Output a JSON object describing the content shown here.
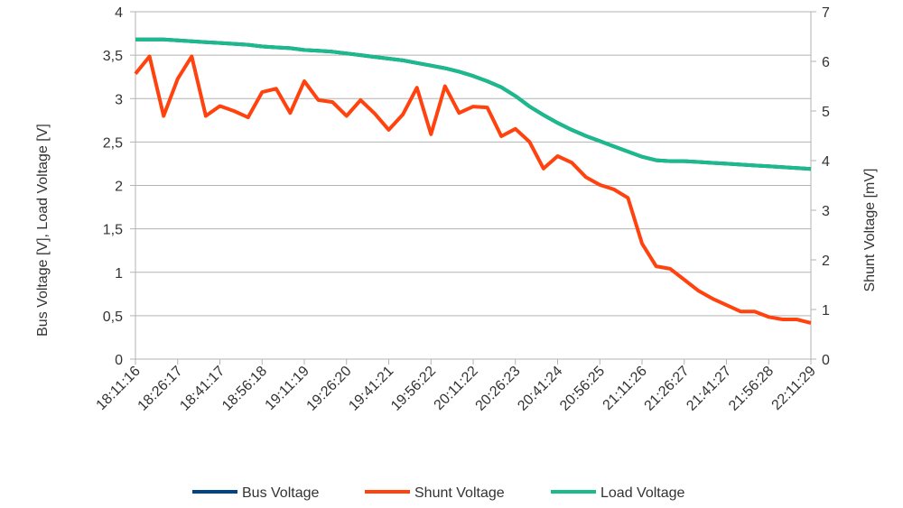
{
  "chart_data": {
    "type": "line",
    "y_label": "Bus Voltage [V], Load Voltage [V]",
    "y2_label": "Shunt Voltage [mV]",
    "categories": [
      "18:11:16",
      null,
      null,
      "18:26:17",
      null,
      null,
      "18:41:17",
      null,
      null,
      "18:56:18",
      null,
      null,
      "19:11:19",
      null,
      null,
      "19:26:20",
      null,
      null,
      "19:41:21",
      null,
      null,
      "19:56:22",
      null,
      null,
      "20:11:22",
      null,
      null,
      "20:26:23",
      null,
      null,
      "20:41:24",
      null,
      null,
      "20:56:25",
      null,
      null,
      "21:11:26",
      null,
      null,
      "21:26:27",
      null,
      null,
      "21:41:27",
      null,
      null,
      "21:56:28",
      null,
      null,
      "22:11:29"
    ],
    "series": [
      {
        "name": "Bus Voltage",
        "color": "#004586",
        "axis": "y",
        "values": [
          3.68,
          3.68,
          3.68,
          3.67,
          3.66,
          3.65,
          3.64,
          3.63,
          3.62,
          3.6,
          3.59,
          3.58,
          3.56,
          3.55,
          3.54,
          3.52,
          3.5,
          3.48,
          3.46,
          3.44,
          3.41,
          3.38,
          3.35,
          3.31,
          3.26,
          3.2,
          3.13,
          3.03,
          2.91,
          2.81,
          2.72,
          2.64,
          2.57,
          2.51,
          2.45,
          2.39,
          2.33,
          2.29,
          2.28,
          2.28,
          2.27,
          2.26,
          2.25,
          2.24,
          2.23,
          2.22,
          2.21,
          2.2,
          2.19
        ]
      },
      {
        "name": "Shunt Voltage",
        "color": "#ff420e",
        "axis": "y2",
        "values": [
          5.75,
          6.1,
          4.9,
          5.65,
          6.1,
          4.9,
          5.1,
          5.0,
          4.87,
          5.38,
          5.45,
          4.96,
          5.6,
          5.22,
          5.18,
          4.9,
          5.22,
          4.95,
          4.62,
          4.93,
          5.47,
          4.53,
          5.5,
          4.96,
          5.09,
          5.07,
          4.49,
          4.64,
          4.38,
          3.84,
          4.09,
          3.96,
          3.67,
          3.51,
          3.42,
          3.25,
          2.33,
          1.87,
          1.82,
          1.6,
          1.38,
          1.22,
          1.09,
          0.96,
          0.96,
          0.85,
          0.8,
          0.8,
          0.73
        ]
      },
      {
        "name": "Load Voltage",
        "color": "#1cb98c",
        "axis": "y",
        "values": [
          3.68,
          3.68,
          3.68,
          3.67,
          3.66,
          3.65,
          3.64,
          3.63,
          3.62,
          3.6,
          3.59,
          3.58,
          3.56,
          3.55,
          3.54,
          3.52,
          3.5,
          3.48,
          3.46,
          3.44,
          3.41,
          3.38,
          3.35,
          3.31,
          3.26,
          3.2,
          3.13,
          3.03,
          2.91,
          2.81,
          2.72,
          2.64,
          2.57,
          2.51,
          2.45,
          2.39,
          2.33,
          2.29,
          2.28,
          2.28,
          2.27,
          2.26,
          2.25,
          2.24,
          2.23,
          2.22,
          2.21,
          2.2,
          2.19
        ]
      }
    ],
    "ylim": [
      0,
      4
    ],
    "yticks": [
      0,
      {
        "value": 0.5,
        "label": "0,5"
      },
      1,
      {
        "value": 1.5,
        "label": "1,5"
      },
      2,
      {
        "value": 2.5,
        "label": "2,5"
      },
      3,
      {
        "value": 3.5,
        "label": "3,5"
      },
      4
    ],
    "y2lim": [
      0,
      7
    ],
    "y2ticks": [
      0,
      1,
      2,
      3,
      4,
      5,
      6,
      7
    ],
    "grid": true,
    "legend": "bottom"
  }
}
